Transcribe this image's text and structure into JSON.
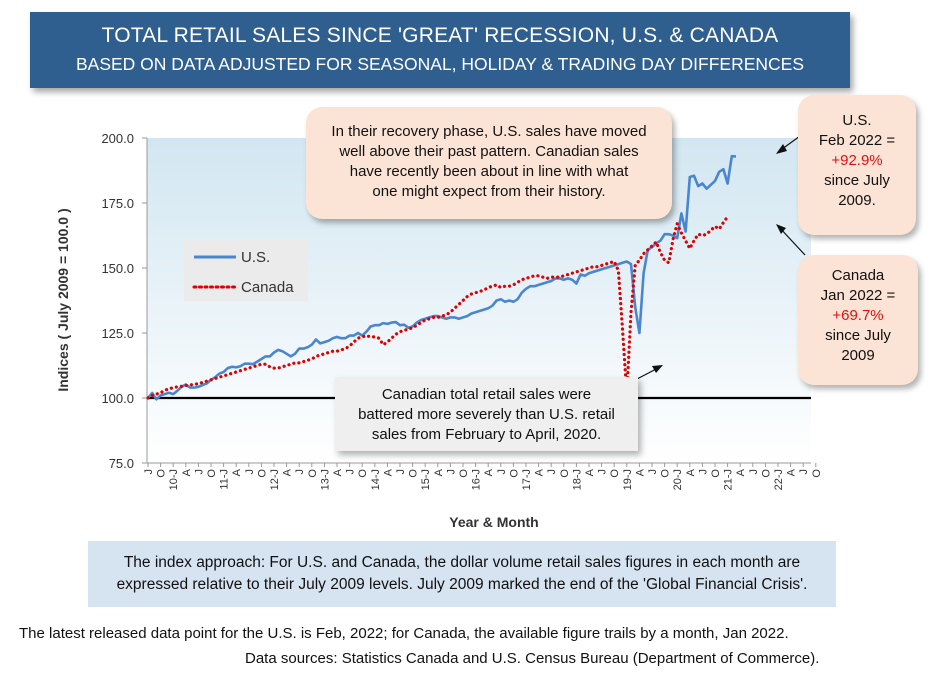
{
  "header": {
    "title": "TOTAL RETAIL SALES SINCE 'GREAT' RECESSION, U.S. & CANADA",
    "subtitle": "BASED ON DATA ADJUSTED FOR SEASONAL, HOLIDAY & TRADING DAY DIFFERENCES"
  },
  "callouts": {
    "recovery": [
      "In their recovery phase, U.S. sales have moved",
      "well above their past pattern. Canadian sales",
      "have recently been about in line with what",
      "one might expect from their history."
    ],
    "us": {
      "l1": "U.S.",
      "l2": "Feb 2022 =",
      "pct": "+92.9%",
      "l3": "since July",
      "l4": "2009."
    },
    "canada": {
      "l1": "Canada",
      "l2": "Jan 2022 =",
      "pct": "+69.7%",
      "l3": "since July",
      "l4": "2009"
    },
    "covid": [
      "Canadian total retail sales were",
      "battered more severely than U.S. retail",
      "sales from February to April, 2020."
    ]
  },
  "index_note": [
    "The index approach: For U.S. and Canada, the dollar volume retail sales figures in each month are",
    "expressed relative to their July 2009 levels. July 2009 marked the end of the 'Global Financial Crisis'."
  ],
  "footer": {
    "line1": "The latest released data point for the U.S. is Feb, 2022; for Canada, the available figure trails by a month, Jan 2022.",
    "line2": "Data sources: Statistics Canada and U.S. Census Bureau (Department of Commerce)."
  },
  "chart_data": {
    "type": "line",
    "xlabel": "Year & Month",
    "ylabel": "Indices ( July 2009 = 100.0 )",
    "ylim": [
      75,
      200
    ],
    "yticks": [
      "75.0",
      "100.0",
      "125.0",
      "150.0",
      "175.0",
      "200.0"
    ],
    "x_start": "2009-07",
    "x_tick_labels": [
      "J",
      "O",
      "10-J",
      "A",
      "J",
      "O",
      "11-J",
      "A",
      "J",
      "O",
      "12-J",
      "A",
      "J",
      "O",
      "13-J",
      "A",
      "J",
      "O",
      "14-J",
      "A",
      "J",
      "O",
      "15-J",
      "A",
      "J",
      "O",
      "16-J",
      "A",
      "J",
      "O",
      "17-J",
      "A",
      "J",
      "O",
      "18-J",
      "A",
      "J",
      "O",
      "19-J",
      "A",
      "J",
      "O",
      "20-J",
      "A",
      "J",
      "O",
      "21-J",
      "A",
      "J",
      "O",
      "22-J",
      "A",
      "J",
      "O"
    ],
    "legend_position": "upper-left",
    "colors": {
      "us": "#4a86d0",
      "canada": "#e00000",
      "plot_top": "#d2e6f1",
      "plot_bottom": "#ffffff"
    },
    "series": [
      {
        "name": "U.S.",
        "start": "2009-07",
        "style": "solid",
        "values": [
          100.0,
          101.9,
          99.5,
          101.0,
          101.5,
          102.0,
          101.5,
          102.8,
          104.3,
          105.2,
          104.0,
          104.0,
          104.3,
          105.0,
          105.6,
          107.0,
          108.0,
          109.4,
          110.0,
          111.5,
          112.0,
          111.8,
          112.2,
          113.2,
          113.2,
          113.0,
          114.0,
          115.0,
          116.0,
          116.0,
          117.5,
          118.5,
          118.0,
          117.0,
          116.0,
          117.0,
          119.0,
          119.0,
          119.5,
          120.5,
          122.5,
          121.0,
          121.5,
          122.0,
          123.0,
          123.5,
          123.0,
          123.0,
          124.0,
          124.0,
          125.0,
          124.0,
          125.5,
          127.5,
          128.0,
          128.0,
          128.8,
          128.5,
          129.0,
          129.2,
          128.0,
          128.2,
          127.0,
          127.5,
          129.0,
          130.0,
          130.5,
          131.0,
          131.5,
          131.5,
          131.0,
          130.5,
          131.0,
          131.0,
          130.5,
          131.0,
          131.5,
          132.5,
          133.0,
          133.5,
          134.0,
          134.5,
          135.5,
          137.5,
          138.0,
          137.0,
          137.5,
          137.0,
          138.0,
          140.5,
          142.0,
          143.0,
          143.0,
          143.5,
          144.0,
          144.5,
          145.0,
          146.0,
          146.0,
          145.5,
          146.0,
          145.5,
          144.0,
          147.5,
          147.0,
          148.0,
          148.5,
          149.0,
          149.5,
          150.0,
          150.5,
          151.0,
          151.5,
          152.0,
          152.5,
          151.5,
          135.0,
          125.0,
          148.0,
          157.0,
          158.0,
          159.5,
          160.5,
          163.0,
          163.0,
          162.5,
          161.5,
          171.0,
          164.0,
          185.0,
          185.5,
          181.5,
          182.5,
          180.5,
          182.0,
          183.5,
          187.0,
          188.0,
          182.5,
          193.0,
          192.9
        ]
      },
      {
        "name": "Canada",
        "start": "2009-07",
        "style": "dotted",
        "values": [
          100.0,
          101.0,
          101.5,
          102.0,
          103.0,
          103.5,
          104.0,
          104.3,
          104.5,
          104.8,
          105.0,
          105.3,
          105.5,
          106.0,
          106.5,
          107.0,
          107.5,
          108.0,
          108.5,
          109.0,
          109.5,
          110.0,
          110.5,
          111.0,
          111.5,
          112.0,
          112.5,
          113.0,
          113.0,
          112.0,
          111.5,
          111.5,
          112.0,
          112.5,
          113.0,
          113.5,
          113.5,
          114.0,
          114.5,
          115.0,
          116.0,
          116.5,
          117.0,
          117.5,
          118.0,
          118.0,
          118.5,
          119.0,
          120.0,
          121.5,
          123.0,
          123.5,
          124.0,
          123.5,
          123.5,
          123.0,
          120.5,
          121.5,
          123.0,
          124.5,
          125.5,
          126.0,
          126.5,
          127.0,
          128.0,
          129.0,
          130.0,
          130.5,
          131.0,
          131.0,
          131.5,
          132.0,
          133.0,
          134.5,
          136.0,
          137.5,
          139.0,
          140.0,
          140.5,
          141.0,
          141.5,
          142.5,
          143.0,
          143.5,
          142.5,
          143.0,
          143.0,
          143.5,
          144.5,
          145.5,
          146.0,
          146.5,
          147.0,
          147.0,
          146.5,
          146.0,
          146.5,
          146.5,
          146.5,
          147.0,
          147.5,
          148.0,
          148.5,
          149.0,
          149.5,
          150.0,
          150.5,
          150.5,
          151.0,
          151.5,
          152.0,
          152.5,
          149.0,
          126.0,
          101.5,
          133.0,
          151.0,
          153.0,
          155.5,
          157.0,
          158.5,
          160.0,
          156.0,
          153.0,
          152.0,
          161.0,
          167.0,
          163.5,
          160.5,
          157.5,
          160.5,
          163.0,
          162.5,
          163.0,
          164.5,
          166.0,
          165.0,
          167.5,
          169.7
        ]
      }
    ]
  }
}
